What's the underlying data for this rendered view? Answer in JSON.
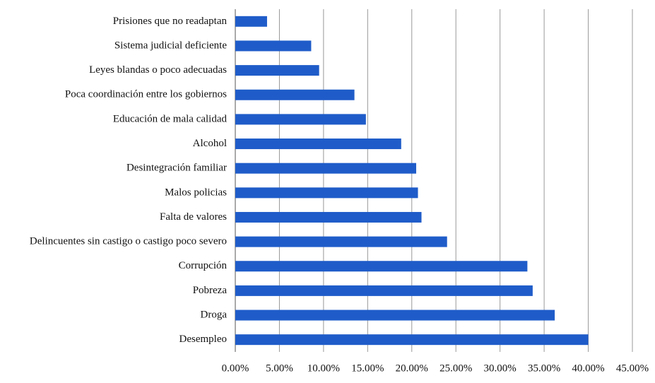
{
  "chart_data": {
    "type": "bar",
    "orientation": "horizontal",
    "categories": [
      "Prisiones que no readaptan",
      "Sistema judicial deficiente",
      "Leyes blandas o poco adecuadas",
      "Poca coordinación entre los gobiernos",
      "Educación de mala calidad",
      "Alcohol",
      "Desintegración familiar",
      "Malos policias",
      "Falta de valores",
      "Delincuentes sin castigo o castigo poco severo",
      "Corrupción",
      "Pobreza",
      "Droga",
      "Desempleo"
    ],
    "values": [
      3.6,
      8.6,
      9.5,
      13.5,
      14.8,
      18.8,
      20.5,
      20.7,
      21.1,
      24.0,
      33.1,
      33.7,
      36.2,
      40.0
    ],
    "color": "#1f5cc9",
    "xlim": [
      0,
      45
    ],
    "xticks": [
      {
        "value": 0,
        "label": "0.00%"
      },
      {
        "value": 5,
        "label": "5.00%"
      },
      {
        "value": 10,
        "label": "10.00%"
      },
      {
        "value": 15,
        "label": "15.00%"
      },
      {
        "value": 20,
        "label": "20.00%"
      },
      {
        "value": 25,
        "label": "25.00%"
      },
      {
        "value": 30,
        "label": "30.00%"
      },
      {
        "value": 35,
        "label": "35.00%"
      },
      {
        "value": 40,
        "label": "40.00%"
      },
      {
        "value": 45,
        "label": "45.00%"
      }
    ],
    "grid": true
  }
}
